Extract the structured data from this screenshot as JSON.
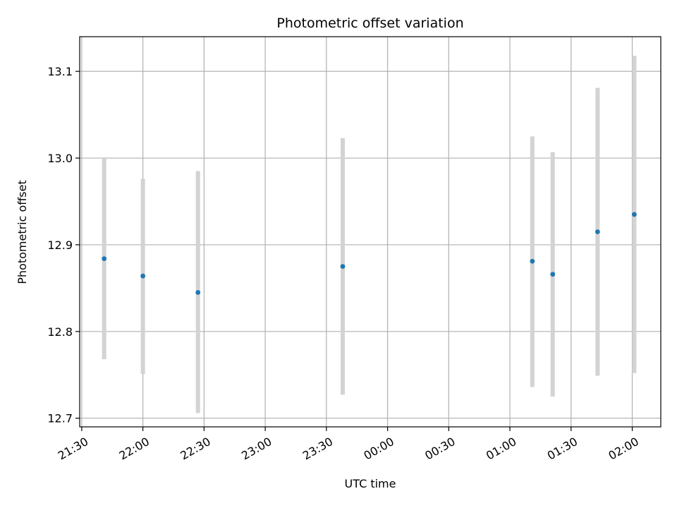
{
  "chart_data": {
    "type": "scatter",
    "title": "Photometric offset variation",
    "xlabel": "UTC time",
    "ylabel": "Photometric offset",
    "grid": true,
    "x_ticks": [
      "21:30",
      "22:00",
      "22:30",
      "23:00",
      "23:30",
      "00:00",
      "00:30",
      "01:00",
      "01:30",
      "02:00"
    ],
    "y_ticks": [
      "12.7",
      "12.8",
      "12.9",
      "13.0",
      "13.1"
    ],
    "x_tick_values": [
      "21:30",
      "22:00",
      "22:30",
      "23:00",
      "23:30",
      "00:00",
      "00:30",
      "01:00",
      "01:30",
      "02:00"
    ],
    "y_tick_values": [
      12.7,
      12.8,
      12.9,
      13.0,
      13.1
    ],
    "xlim": [
      "21:29",
      "02:14"
    ],
    "ylim": [
      12.69,
      13.14
    ],
    "series": [
      {
        "points": [
          {
            "x": "21:41",
            "y": 12.884,
            "err_low": 12.768,
            "err_high": 13.001
          },
          {
            "x": "22:00",
            "y": 12.864,
            "err_low": 12.751,
            "err_high": 12.976
          },
          {
            "x": "22:27",
            "y": 12.845,
            "err_low": 12.706,
            "err_high": 12.985
          },
          {
            "x": "23:38",
            "y": 12.875,
            "err_low": 12.727,
            "err_high": 13.023
          },
          {
            "x": "01:11",
            "y": 12.881,
            "err_low": 12.736,
            "err_high": 13.025
          },
          {
            "x": "01:21",
            "y": 12.866,
            "err_low": 12.725,
            "err_high": 13.007
          },
          {
            "x": "01:43",
            "y": 12.915,
            "err_low": 12.749,
            "err_high": 13.081
          },
          {
            "x": "02:01",
            "y": 12.935,
            "err_low": 12.752,
            "err_high": 13.118
          }
        ]
      }
    ],
    "colors": {
      "marker": "#1f77b4",
      "errorbar": "#d3d3d3",
      "grid": "#b0b0b0"
    }
  }
}
